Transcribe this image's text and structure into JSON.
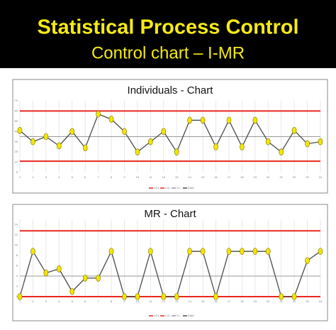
{
  "header": {
    "title": "Statistical Process Control",
    "subtitle": "Control chart –  I-MR"
  },
  "chart_data": [
    {
      "type": "line",
      "title": "Individuals - Chart",
      "x": [
        1,
        2,
        3,
        4,
        5,
        6,
        7,
        8,
        9,
        10,
        11,
        12,
        13,
        14,
        15,
        16,
        17,
        18,
        19,
        20,
        21,
        22,
        23,
        24
      ],
      "xlim": [
        1,
        24
      ],
      "xticks": [
        1,
        2,
        3,
        4,
        5,
        6,
        7,
        8,
        9,
        10,
        11,
        12,
        13,
        14,
        15,
        16,
        17,
        18,
        19,
        20,
        21,
        22,
        23,
        24
      ],
      "ylim": [
        0,
        70
      ],
      "yticks": [
        0,
        10,
        20,
        30,
        40,
        50,
        60,
        70
      ],
      "grid": true,
      "control_lines": [
        {
          "name": "UCL",
          "value": 60,
          "color": "#e8271f"
        },
        {
          "name": "LCL",
          "value": 11,
          "color": "#e8271f"
        },
        {
          "name": "CL",
          "value": 35,
          "color": "#9a9a9a"
        }
      ],
      "series": [
        {
          "name": "Data",
          "color": "#4a4a4a",
          "marker_color": "#f2e600",
          "values": [
            41,
            30,
            35,
            26,
            40,
            24,
            57,
            52,
            40,
            20,
            30,
            40,
            20,
            51,
            51,
            25,
            51,
            25,
            51,
            30,
            20,
            41,
            28,
            30
          ]
        }
      ]
    },
    {
      "type": "line",
      "title": "MR - Chart",
      "x": [
        1,
        2,
        3,
        4,
        5,
        6,
        7,
        8,
        9,
        10,
        11,
        12,
        13,
        14,
        15,
        16,
        17,
        18,
        19,
        20,
        21,
        22,
        23,
        24
      ],
      "xlim": [
        1,
        24
      ],
      "xticks": [
        1,
        2,
        3,
        4,
        5,
        6,
        7,
        8,
        9,
        10,
        11,
        12,
        13,
        14,
        15,
        16,
        17,
        18,
        19,
        20,
        21,
        22,
        23,
        24
      ],
      "ylim": [
        0,
        15
      ],
      "yticks": [
        0,
        2,
        4,
        6,
        8,
        10,
        12,
        14
      ],
      "grid": true,
      "control_lines": [
        {
          "name": "UCL",
          "value": 12.8,
          "color": "#e8271f"
        },
        {
          "name": "LCL",
          "value": 0,
          "color": "#e8271f"
        },
        {
          "name": "CL",
          "value": 4,
          "color": "#9a9a9a"
        }
      ],
      "series": [
        {
          "name": "Data",
          "color": "#4a4a4a",
          "marker_color": "#f2e600",
          "values": [
            0,
            8.8,
            4.6,
            5.4,
            1,
            3.6,
            3.6,
            8.8,
            0,
            0,
            8.8,
            0,
            0,
            8.8,
            8.8,
            0,
            8.8,
            8.8,
            8.8,
            8.8,
            0,
            0,
            7,
            8.8
          ]
        }
      ]
    }
  ]
}
